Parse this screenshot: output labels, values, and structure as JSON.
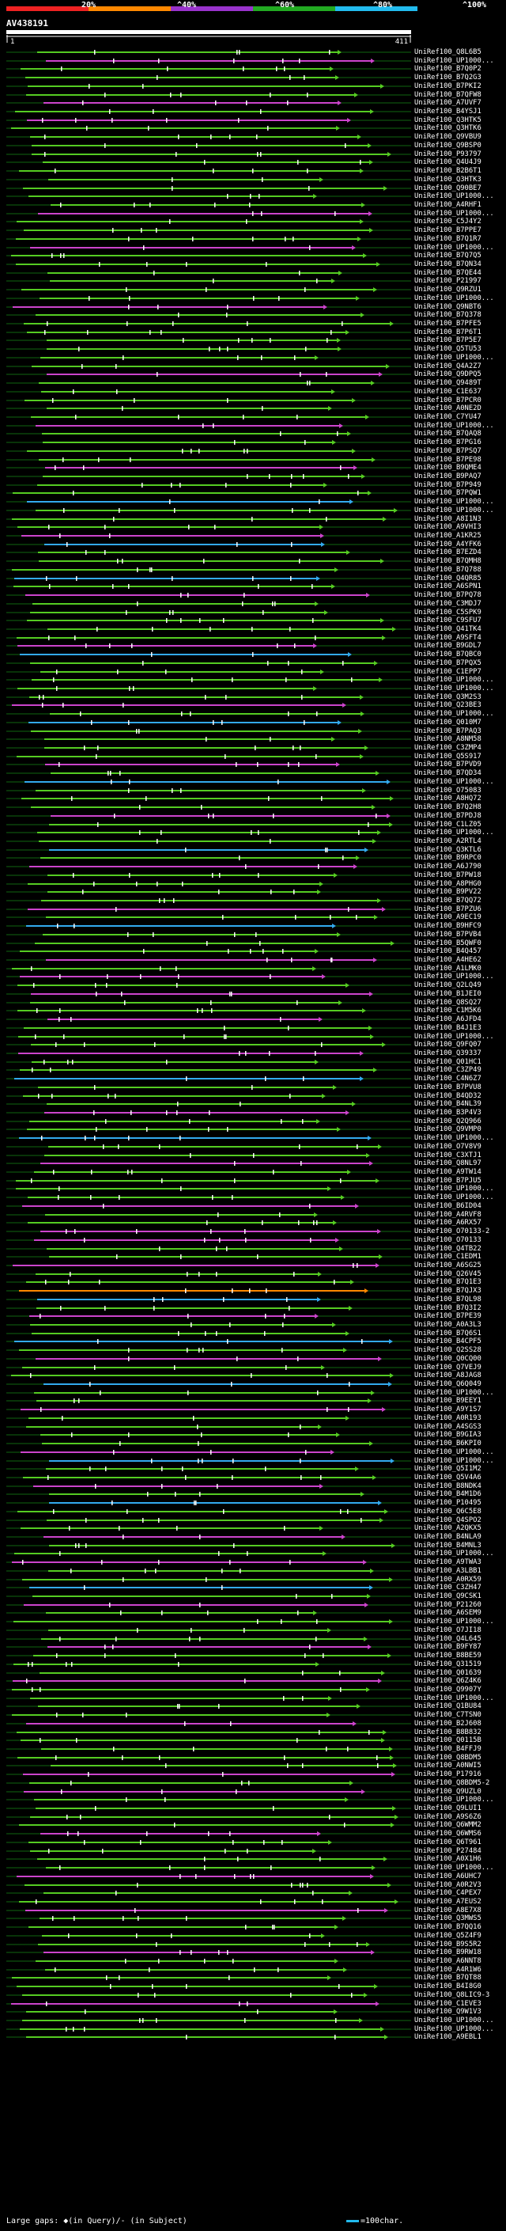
{
  "scale": {
    "ticks": [
      "20%",
      "^40%",
      "^60%",
      "^80%",
      "^100%"
    ],
    "segment_colors": [
      "#ee2222",
      "#ff8800",
      "#9933cc",
      "#22aa22",
      "#22bbee"
    ]
  },
  "query": {
    "id": "AV438191",
    "start": "1",
    "end": "411"
  },
  "colors": {
    "background": "#000000",
    "green": "#55cc22",
    "magenta": "#cc44cc",
    "cyan": "#33aaee",
    "orange": "#ff8800",
    "dark_green": "#116611"
  },
  "hits": [
    "UniRef100_Q8L6B5",
    "UniRef100_UP1000...",
    "UniRef100_B7Q0P2",
    "UniRef100_B7Q2G3",
    "UniRef100_B7PKI2",
    "UniRef100_B7QFW8",
    "UniRef100_A7UVF7",
    "UniRef100_B4YSJ1",
    "UniRef100_Q3HTK5",
    "UniRef100_Q3HTK6",
    "UniRef100_Q9VBU9",
    "UniRef100_Q9BSP0",
    "UniRef100_P93797",
    "UniRef100_Q4U4J9",
    "UniRef100_B2B6T1",
    "UniRef100_Q3HTK3",
    "UniRef100_Q90BE7",
    "UniRef100_UP1000...",
    "UniRef100_A4RHF1",
    "UniRef100_UP1000...",
    "UniRef100_C5J4Y2",
    "UniRef100_B7PPE7",
    "UniRef100_B7Q1R7",
    "UniRef100_UP1000...",
    "UniRef100_B7Q7Q5",
    "UniRef100_B7QN34",
    "UniRef100_B7QE44",
    "UniRef100_P21997",
    "UniRef100_Q9RZU1",
    "UniRef100_UP1000...",
    "UniRef100_Q9NBT6",
    "UniRef100_B7Q378",
    "UniRef100_B7PFE5",
    "UniRef100_B7P6T1",
    "UniRef100_B7P5E7",
    "UniRef100_Q5TU53",
    "UniRef100_UP1000...",
    "UniRef100_Q4A2Z7",
    "UniRef100_Q9DPQ5",
    "UniRef100_Q9489T",
    "UniRef100_C1E637",
    "UniRef100_B7PCR0",
    "UniRef100_A0NE2D",
    "UniRef100_C7YU47",
    "UniRef100_UP1000...",
    "UniRef100_B7QAQ8",
    "UniRef100_B7PG16",
    "UniRef100_B7PSQ7",
    "UniRef100_B7PE98",
    "UniRef100_B9QME4",
    "UniRef100_B9PAQ7",
    "UniRef100_B7P949",
    "UniRef100_B7PQW1",
    "UniRef100_UP1000...",
    "UniRef100_UP1000...",
    "UniRef100_A8I1N3",
    "UniRef100_A9VHI3",
    "UniRef100_A1KR25",
    "UniRef100_A4YFK6",
    "UniRef100_B7EZD4",
    "UniRef100_B7QMH8",
    "UniRef100_B7Q788",
    "UniRef100_Q4QR85",
    "UniRef100_A6SPN1",
    "UniRef100_B7PQ78",
    "UniRef100_C3MDJ7",
    "UniRef100_C5SPK9",
    "UniRef100_C9SFU7",
    "UniRef100_Q41TK4",
    "UniRef100_A9SFT4",
    "UniRef100_B9GDL7",
    "UniRef100_B7QBC0",
    "UniRef100_B7PQX5",
    "UniRef100_C1EPP7",
    "UniRef100_UP1000...",
    "UniRef100_UP1000...",
    "UniRef100_Q3M2S3",
    "UniRef100_Q23BE3",
    "UniRef100_UP1000...",
    "UniRef100_Q010M7",
    "UniRef100_B7PAQ3",
    "UniRef100_A8NM58",
    "UniRef100_C3ZMP4",
    "UniRef100_Q5S917",
    "UniRef100_B7PVD9",
    "UniRef100_B7QD34",
    "UniRef100_UP1000...",
    "UniRef100_O75083",
    "UniRef100_A8HQ72",
    "UniRef100_B7Q2H8",
    "UniRef100_B7PDJ8",
    "UniRef100_C1LZ05",
    "UniRef100_UP1000...",
    "UniRef100_A2RTL4",
    "UniRef100_Q3KTL6",
    "UniRef100_B9RPC0",
    "UniRef100_A6J790",
    "UniRef100_B7PW18",
    "UniRef100_A8PHG0",
    "UniRef100_B9PV22",
    "UniRef100_B7QQ72",
    "UniRef100_B7PZU6",
    "UniRef100_A9EC19",
    "UniRef100_B9HFC9",
    "UniRef100_B7PVB4",
    "UniRef100_B5QWF0",
    "UniRef100_B4Q457",
    "UniRef100_A4HE62",
    "UniRef100_A1LMK0",
    "UniRef100_UP1000...",
    "UniRef100_Q2LQ49",
    "UniRef100_B1JEI0",
    "UniRef100_Q8SQ27",
    "UniRef100_C1M5K6",
    "UniRef100_A6JFD4",
    "UniRef100_B4J1E3",
    "UniRef100_UP1000...",
    "UniRef100_Q9FQ07",
    "UniRef100_Q39337",
    "UniRef100_Q01HC1",
    "UniRef100_C3ZP49",
    "UniRef100_C4N6Z7",
    "UniRef100_B7PVU8",
    "UniRef100_B4QD32",
    "UniRef100_B4NL39",
    "UniRef100_B3P4V3",
    "UniRef100_Q2Q966",
    "UniRef100_Q9VMP0",
    "UniRef100_UP1000...",
    "UniRef100_O7V8V9",
    "UniRef100_C3XTJ1",
    "UniRef100_Q8NL97",
    "UniRef100_A9TW14",
    "UniRef100_B7PJU5",
    "UniRef100_UP1000...",
    "UniRef100_UP1000...",
    "UniRef100_B6ID04",
    "UniRef100_A4RVF8",
    "UniRef100_A6RX57",
    "UniRef100_O70133-2",
    "UniRef100_O70133",
    "UniRef100_Q4TB22",
    "UniRef100_C1EDM1",
    "UniRef100_A6SG25",
    "UniRef100_Q26V45",
    "UniRef100_B7Q1E3",
    "UniRef100_B7QJX3",
    "UniRef100_B7QL98",
    "UniRef100_B7Q3I2",
    "UniRef100_B7PE39",
    "UniRef100_A0A3L3",
    "UniRef100_B7Q6S1",
    "UniRef100_B4CPF5",
    "UniRef100_Q2SS28",
    "UniRef100_Q0CQ00",
    "UniRef100_Q7VEJ9",
    "UniRef100_A8JAG8",
    "UniRef100_Q6Q049",
    "UniRef100_UP1000...",
    "UniRef100_B9EEY1",
    "UniRef100_A9Y1S7",
    "UniRef100_A0R193",
    "UniRef100_A4SGS3",
    "UniRef100_B9GIA3",
    "UniRef100_B6KPI0",
    "UniRef100_UP1000...",
    "UniRef100_UP1000...",
    "UniRef100_Q5I1M2",
    "UniRef100_Q5V4A6",
    "UniRef100_B8NDK4",
    "UniRef100_B4M1D6",
    "UniRef100_P10495",
    "UniRef100_Q6C5E8",
    "UniRef100_Q4SPO2",
    "UniRef100_A2QKX5",
    "UniRef100_B4NLA9",
    "UniRef100_B4MNL3",
    "UniRef100_UP1000...",
    "UniRef100_A9TWA3",
    "UniRef100_A3LBB1",
    "UniRef100_A0RX59",
    "UniRef100_C3ZH47",
    "UniRef100_Q9CSK1",
    "UniRef100_P21260",
    "UniRef100_A6SEM9",
    "UniRef100_UP1000...",
    "UniRef100_O7JI18",
    "UniRef100_Q4L645",
    "UniRef100_B9FY87",
    "UniRef100_B8BE59",
    "UniRef100_Q31519",
    "UniRef100_Q01639",
    "UniRef100_Q6Z4K6",
    "UniRef100_Q9907Y",
    "UniRef100_UP1000...",
    "UniRef100_Q1BU84",
    "UniRef100_C7TSN0",
    "UniRef100_B2J608",
    "UniRef100_B8B832",
    "UniRef100_Q0115B",
    "UniRef100_B4FFJ9",
    "UniRef100_Q8BDM5",
    "UniRef100_A0NWI5",
    "UniRef100_P17916",
    "UniRef100_Q8BDM5-2",
    "UniRef100_Q9UZL0",
    "UniRef100_UP1000...",
    "UniRef100_Q9LUI1",
    "UniRef100_A9S6Z6",
    "UniRef100_Q6WMM2",
    "UniRef100_Q6WMS6",
    "UniRef100_Q6T961",
    "UniRef100_P27484",
    "UniRef100_A0X1H6",
    "UniRef100_UP1000...",
    "UniRef100_A6UHC7",
    "UniRef100_A0R2V3",
    "UniRef100_C4PEX7",
    "UniRef100_A7EUS2",
    "UniRef100_A8E7X8",
    "UniRef100_Q3MWS5",
    "UniRef100_B7QQ16",
    "UniRef100_Q5Z4F9",
    "UniRef100_B9S5R2",
    "UniRef100_B9RW18",
    "UniRef100_A6NNT8",
    "UniRef100_A4R1W6",
    "UniRef100_B7QT88",
    "UniRef100_B4I8G0",
    "UniRef100_Q8LIC9-3",
    "UniRef100_C1EVE3",
    "UniRef100_Q9W1V3",
    "UniRef100_UP1000...",
    "UniRef100_UP1000...",
    "UniRef100_A9EBL1"
  ],
  "footer": {
    "legend_left": "Large gaps: ◆(in Query)/- (in Subject)",
    "legend_right": "=100char."
  }
}
